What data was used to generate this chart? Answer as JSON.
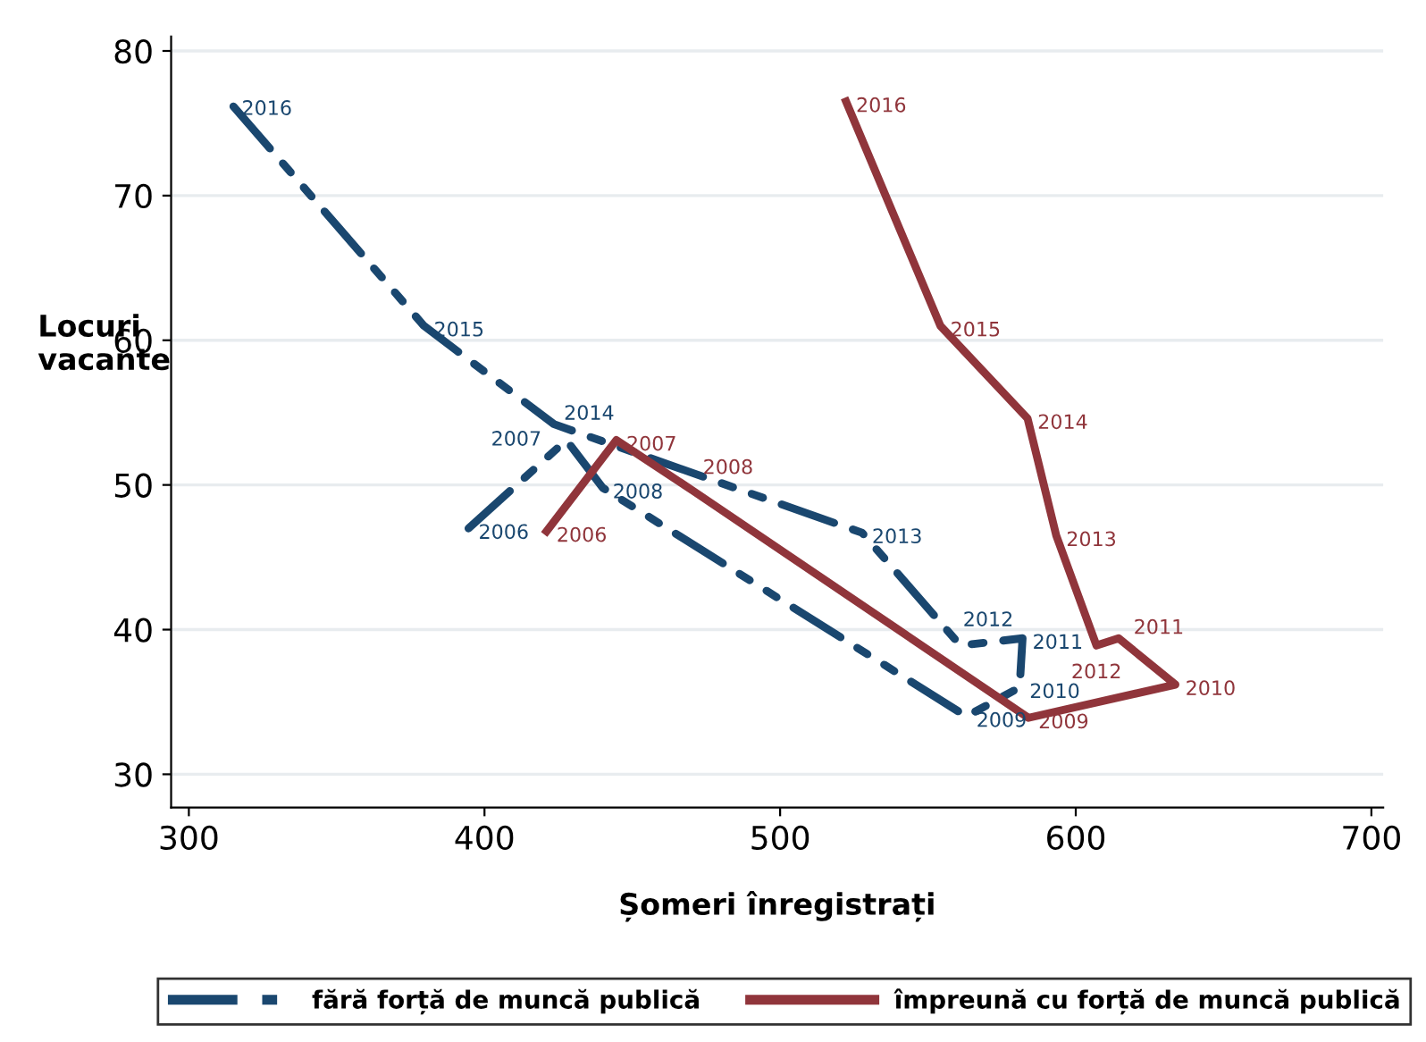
{
  "chart_data": {
    "type": "line",
    "xlabel": "Șomeri înregistrați",
    "ylabel": "Locuri\nvacante",
    "xlim": [
      294,
      704
    ],
    "xticks": [
      300,
      400,
      500,
      600,
      700
    ],
    "ylim": [
      27.7,
      81
    ],
    "yticks": [
      30,
      40,
      50,
      60,
      70,
      80
    ],
    "grid": "y",
    "legend": "bottom",
    "marker": "none",
    "series": [
      {
        "name": "fără forță de muncă publică",
        "color": "#1a476f",
        "line_style": "dashed",
        "x": [
          394.6,
          427.7,
          440,
          563,
          581,
          582,
          561,
          527.7,
          423.5,
          379.5,
          314.5
        ],
        "values": [
          47.0,
          53.1,
          49.8,
          34.0,
          36.0,
          39.4,
          38.9,
          46.7,
          54.2,
          61.0,
          76.3
        ]
      },
      {
        "name": "împreună cu forță de muncă publică",
        "color": "#90353b",
        "line_style": "solid",
        "x": [
          421,
          444.6,
          470.5,
          584,
          633.7,
          614.5,
          607,
          593.4,
          583.7,
          554.2,
          522.3
        ],
        "values": [
          46.8,
          53.1,
          49.6,
          33.9,
          36.2,
          39.4,
          38.9,
          46.5,
          54.6,
          61.0,
          76.5
        ]
      }
    ],
    "annotations": [
      {
        "text": "2006",
        "x": 394.6,
        "y": 47.0
      },
      {
        "text": "2007",
        "x": 427.7,
        "y": 53.1
      },
      {
        "text": "2008",
        "x": 440,
        "y": 49.8
      },
      {
        "text": "2009",
        "x": 563,
        "y": 34.0
      },
      {
        "text": "2010",
        "x": 581,
        "y": 36.0
      },
      {
        "text": "2011",
        "x": 582,
        "y": 39.4
      },
      {
        "text": "2012",
        "x": 561,
        "y": 38.9
      },
      {
        "text": "2013",
        "x": 527.7,
        "y": 46.7
      },
      {
        "text": "2014",
        "x": 423.5,
        "y": 54.2
      },
      {
        "text": "2015",
        "x": 379.5,
        "y": 61.0
      },
      {
        "text": "2016",
        "x": 314.5,
        "y": 76.3
      },
      {
        "text": "2006",
        "x": 421,
        "y": 46.8
      },
      {
        "text": "2007",
        "x": 444.6,
        "y": 53.1
      },
      {
        "text": "2008",
        "x": 470.5,
        "y": 49.6
      },
      {
        "text": "2009",
        "x": 584,
        "y": 33.9
      },
      {
        "text": "2010",
        "x": 633.7,
        "y": 36.2
      },
      {
        "text": "2011",
        "x": 614.5,
        "y": 39.4
      },
      {
        "text": "2012",
        "x": 607,
        "y": 38.9
      },
      {
        "text": "2013",
        "x": 593.4,
        "y": 46.5
      },
      {
        "text": "2014",
        "x": 583.7,
        "y": 54.6
      },
      {
        "text": "2015",
        "x": 554.2,
        "y": 61.0
      },
      {
        "text": "2016",
        "x": 522.3,
        "y": 76.5
      }
    ]
  }
}
